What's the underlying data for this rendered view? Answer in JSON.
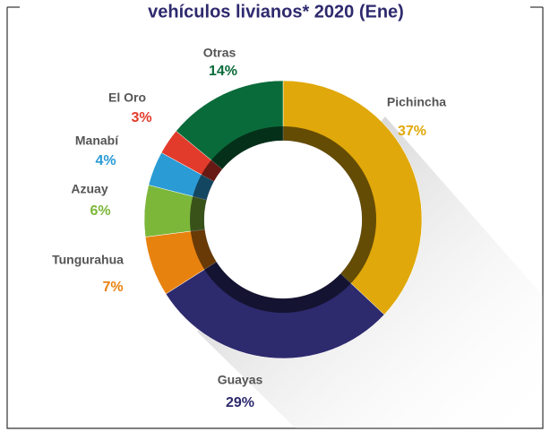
{
  "chart_data": {
    "type": "pie",
    "title": "vehículos livianos* 2020 (Ene)",
    "categories": [
      "Pichincha",
      "Guayas",
      "Tungurahua",
      "Azuay",
      "Manabí",
      "El Oro",
      "Otras"
    ],
    "values": [
      37,
      29,
      7,
      6,
      4,
      3,
      14
    ],
    "value_labels": [
      "37%",
      "29%",
      "7%",
      "6%",
      "4%",
      "3%",
      "14%"
    ],
    "colors": [
      "#e0a80a",
      "#2e2a6e",
      "#e8820f",
      "#7cb73a",
      "#2a9bd4",
      "#e23b2b",
      "#0a6b3a"
    ]
  }
}
